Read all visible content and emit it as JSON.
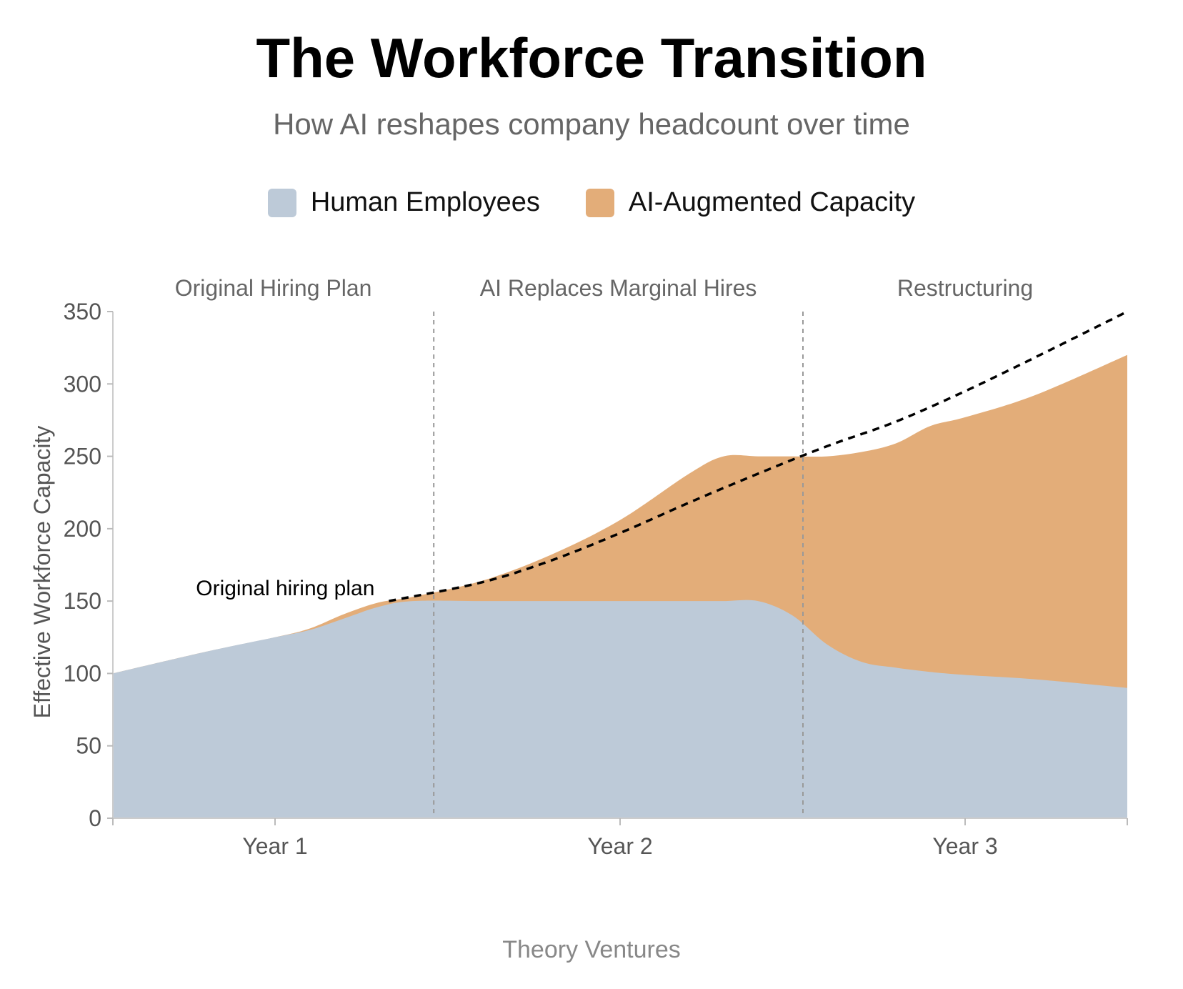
{
  "title": "The Workforce Transition",
  "subtitle": "How AI reshapes company headcount over time",
  "footer": "Theory Ventures",
  "colors": {
    "human": "#bdcad8",
    "ai": "#e3ad79",
    "plan": "#000000",
    "divider": "#999999"
  },
  "chart_data": {
    "type": "area",
    "stacked": true,
    "title": "The Workforce Transition",
    "ylabel": "Effective Workforce Capacity",
    "xlabel": "",
    "ylim": [
      0,
      350
    ],
    "yticks": [
      0,
      50,
      100,
      150,
      200,
      250,
      300,
      350
    ],
    "xticks": [
      {
        "x": 1,
        "label": "Year 1"
      },
      {
        "x": 2,
        "label": "Year 2"
      },
      {
        "x": 3,
        "label": "Year 3"
      }
    ],
    "xlim": [
      0.53,
      3.47
    ],
    "legend": {
      "position": "top-center",
      "entries": [
        "Human Employees",
        "AI-Augmented Capacity"
      ]
    },
    "phases": [
      {
        "label": "Original Hiring Plan",
        "start": 0.53,
        "end": 1.46
      },
      {
        "label": "AI Replaces Marginal Hires",
        "start": 1.46,
        "end": 2.53
      },
      {
        "label": "Restructuring",
        "start": 2.53,
        "end": 3.47
      }
    ],
    "series": [
      {
        "name": "Human Employees",
        "x": [
          0.53,
          0.8,
          1.0,
          1.1,
          1.2,
          1.3,
          1.4,
          1.6,
          1.8,
          2.0,
          2.2,
          2.3,
          2.4,
          2.5,
          2.6,
          2.7,
          2.8,
          2.9,
          3.0,
          3.2,
          3.47
        ],
        "values": [
          100,
          115,
          125,
          130,
          138,
          146,
          150,
          150,
          150,
          150,
          150,
          150,
          150,
          140,
          120,
          108,
          104,
          101,
          99,
          96,
          90
        ]
      },
      {
        "name": "AI-Augmented Capacity",
        "x": [
          0.53,
          0.8,
          1.0,
          1.1,
          1.2,
          1.3,
          1.4,
          1.6,
          1.8,
          2.0,
          2.2,
          2.3,
          2.4,
          2.5,
          2.6,
          2.7,
          2.8,
          2.9,
          3.0,
          3.2,
          3.47
        ],
        "values": [
          0,
          0,
          0,
          1,
          3,
          3,
          3,
          14,
          32,
          56,
          88,
          100,
          100,
          110,
          130,
          145,
          155,
          170,
          178,
          196,
          230
        ]
      }
    ],
    "reference_line": {
      "label": "Original hiring plan",
      "style": "dashed",
      "x": [
        1.33,
        1.6,
        1.8,
        2.0,
        2.2,
        2.4,
        2.6,
        2.8,
        3.0,
        3.2,
        3.47
      ],
      "values": [
        150,
        163,
        178,
        197,
        218,
        238,
        257,
        274,
        295,
        318,
        350
      ]
    }
  }
}
